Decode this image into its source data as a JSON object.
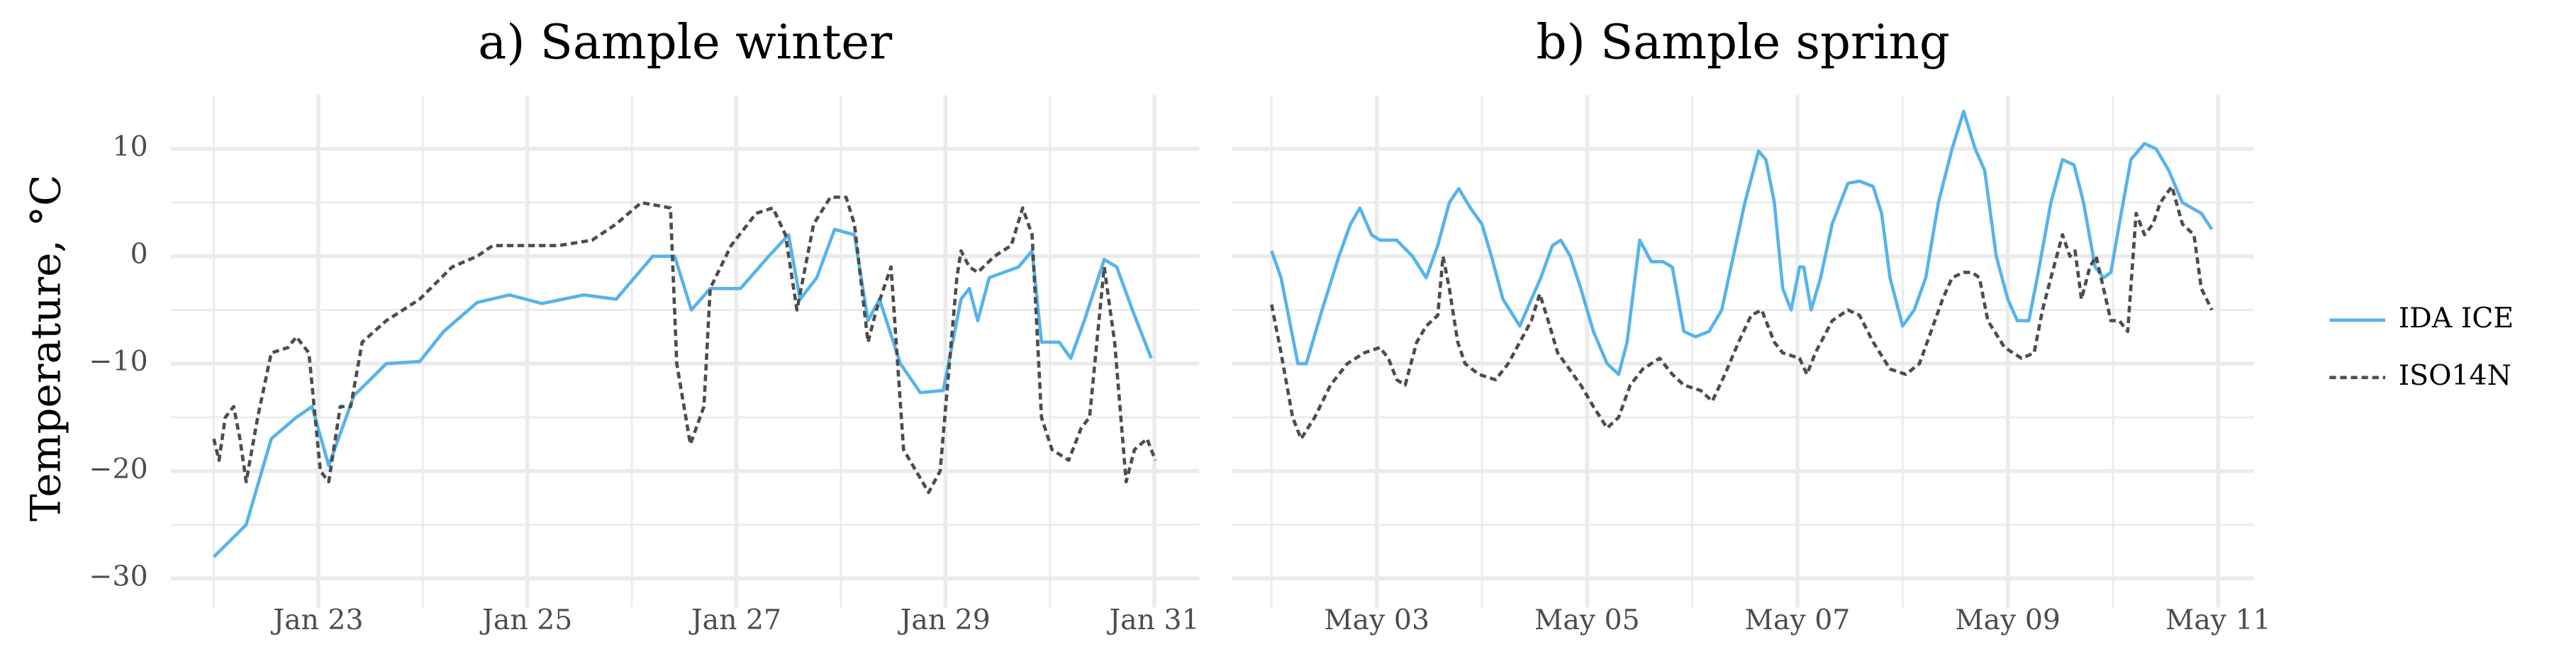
{
  "ylabel": "Temperature, °C",
  "legend": [
    {
      "name": "IDA ICE",
      "color": "#56b4e9",
      "dash": false
    },
    {
      "name": "ISO14N",
      "color": "#4d4d4d",
      "dash": true
    }
  ],
  "chart_data": [
    {
      "type": "line",
      "title": "a) Sample winter",
      "xlim": [
        21.59,
        31.43
      ],
      "xticks": [
        {
          "value": 23,
          "label": "Jan 23"
        },
        {
          "value": 25,
          "label": "Jan 25"
        },
        {
          "value": 27,
          "label": "Jan 27"
        },
        {
          "value": 29,
          "label": "Jan 29"
        },
        {
          "value": 31,
          "label": "Jan 31"
        }
      ],
      "xminor": [
        22,
        24,
        26,
        28,
        30
      ],
      "ylim": [
        -32.7,
        15
      ],
      "yticks": [
        {
          "value": -30,
          "label": "−30"
        },
        {
          "value": -20,
          "label": "−20"
        },
        {
          "value": -10,
          "label": "−10"
        },
        0,
        10
      ],
      "yminor": [
        -25,
        -15,
        -5,
        5
      ],
      "show_ytick_labels": true,
      "grid": true,
      "series": [
        {
          "color": "#56b4e9",
          "dash": false,
          "x": [
            22.0,
            22.31,
            22.55,
            22.79,
            22.94,
            23.1,
            23.34,
            23.65,
            23.97,
            24.2,
            24.52,
            24.83,
            25.14,
            25.54,
            25.85,
            26.2,
            26.41,
            26.57,
            26.75,
            27.04,
            27.31,
            27.5,
            27.61,
            27.77,
            27.94,
            28.13,
            28.26,
            28.37,
            28.57,
            28.76,
            28.98,
            29.15,
            29.23,
            29.31,
            29.42,
            29.7,
            29.83,
            29.92,
            30.09,
            30.2,
            30.33,
            30.52,
            30.64,
            30.79,
            30.97
          ],
          "values": [
            -28,
            -25,
            -17,
            -15,
            -14,
            -19.5,
            -13,
            -10,
            -9.8,
            -7,
            -4.3,
            -3.6,
            -4.4,
            -3.6,
            -4,
            0,
            0,
            -5,
            -3,
            -3,
            0,
            2,
            -4,
            -2,
            2.5,
            2,
            -6,
            -4,
            -10,
            -12.7,
            -12.5,
            -4,
            -3,
            -6,
            -2,
            -1,
            0.5,
            -8,
            -8,
            -9.5,
            -6,
            -0.3,
            -1,
            -5,
            -9.5
          ]
        },
        {
          "color": "#4d4d4d",
          "dash": true,
          "x": [
            22.0,
            22.05,
            22.11,
            22.19,
            22.25,
            22.31,
            22.42,
            22.55,
            22.71,
            22.79,
            22.91,
            23.02,
            23.1,
            23.21,
            23.31,
            23.42,
            23.65,
            23.97,
            24.28,
            24.52,
            24.67,
            24.99,
            25.3,
            25.62,
            25.85,
            26.09,
            26.37,
            26.43,
            26.56,
            26.69,
            26.75,
            26.95,
            27.19,
            27.35,
            27.47,
            27.58,
            27.74,
            27.9,
            28.05,
            28.13,
            28.26,
            28.34,
            28.48,
            28.6,
            28.84,
            28.95,
            29.11,
            29.15,
            29.23,
            29.31,
            29.47,
            29.63,
            29.74,
            29.83,
            29.92,
            30.02,
            30.18,
            30.3,
            30.38,
            30.52,
            30.62,
            30.73,
            30.81,
            30.93,
            31.01
          ],
          "values": [
            -17,
            -19,
            -15,
            -14,
            -17,
            -21,
            -15,
            -9,
            -8.5,
            -7.5,
            -9,
            -20,
            -21,
            -14,
            -14,
            -8,
            -6,
            -4,
            -1,
            0,
            1,
            1,
            1,
            1.5,
            3,
            5,
            4.5,
            -10,
            -17.5,
            -14,
            -3,
            1,
            4,
            4.5,
            2,
            -5,
            3,
            5.5,
            5.5,
            3,
            -8,
            -5,
            -1,
            -18,
            -22,
            -20,
            -2,
            0.5,
            -1,
            -1.5,
            0,
            1,
            4.5,
            2,
            -15,
            -18,
            -19,
            -16,
            -15,
            -1,
            -8,
            -21,
            -18,
            -17,
            -19
          ]
        }
      ]
    },
    {
      "type": "line",
      "title": "b) Sample spring",
      "xlim": [
        1.625,
        11.34
      ],
      "xticks": [
        {
          "value": 3,
          "label": "May 03"
        },
        {
          "value": 5,
          "label": "May 05"
        },
        {
          "value": 7,
          "label": "May 07"
        },
        {
          "value": 9,
          "label": "May 09"
        },
        {
          "value": 11,
          "label": "May 11"
        }
      ],
      "xminor": [
        2,
        4,
        6,
        8,
        10
      ],
      "ylim": [
        -32.7,
        15
      ],
      "yticks": [
        -30,
        -20,
        -10,
        0,
        10
      ],
      "yminor": [
        -25,
        -15,
        -5,
        5
      ],
      "show_ytick_labels": false,
      "grid": true,
      "series": [
        {
          "color": "#56b4e9",
          "dash": false,
          "x": [
            2.0,
            2.09,
            2.25,
            2.33,
            2.48,
            2.64,
            2.75,
            2.84,
            2.95,
            3.03,
            3.19,
            3.34,
            3.47,
            3.58,
            3.69,
            3.78,
            3.89,
            4.0,
            4.09,
            4.2,
            4.36,
            4.47,
            4.56,
            4.67,
            4.75,
            4.84,
            4.94,
            5.06,
            5.19,
            5.3,
            5.38,
            5.5,
            5.61,
            5.72,
            5.81,
            5.92,
            6.03,
            6.16,
            6.28,
            6.39,
            6.5,
            6.63,
            6.7,
            6.78,
            6.86,
            6.94,
            7.02,
            7.06,
            7.13,
            7.22,
            7.33,
            7.48,
            7.59,
            7.72,
            7.8,
            7.88,
            8.0,
            8.11,
            8.22,
            8.34,
            8.47,
            8.58,
            8.69,
            8.78,
            8.89,
            9.0,
            9.09,
            9.2,
            9.28,
            9.41,
            9.52,
            9.63,
            9.72,
            9.83,
            9.91,
            9.98,
            10.06,
            10.17,
            10.3,
            10.41,
            10.53,
            10.66,
            10.84,
            10.94
          ],
          "values": [
            0.5,
            -2,
            -10,
            -10,
            -5,
            0,
            3,
            4.5,
            2,
            1.5,
            1.5,
            0,
            -2,
            1,
            5,
            6.3,
            4.5,
            3,
            0,
            -4,
            -6.5,
            -4,
            -2,
            1,
            1.5,
            0,
            -3,
            -7,
            -10,
            -11,
            -8,
            1.5,
            -0.5,
            -0.5,
            -1,
            -7,
            -7.5,
            -7,
            -5,
            0,
            5,
            9.8,
            9,
            5,
            -3,
            -5,
            -1,
            -1,
            -5,
            -2,
            3,
            6.8,
            7,
            6.5,
            4,
            -2,
            -6.5,
            -5,
            -2,
            5,
            10,
            13.5,
            10,
            8,
            0,
            -4,
            -6,
            -6,
            -2,
            5,
            9,
            8.5,
            5,
            -1,
            -2,
            -1.5,
            3,
            9,
            10.5,
            10,
            8,
            5,
            4,
            2.5
          ]
        },
        {
          "color": "#4d4d4d",
          "dash": true,
          "x": [
            2.0,
            2.09,
            2.2,
            2.28,
            2.41,
            2.56,
            2.72,
            2.88,
            3.03,
            3.11,
            3.19,
            3.27,
            3.38,
            3.47,
            3.58,
            3.63,
            3.69,
            3.77,
            3.84,
            3.97,
            4.13,
            4.25,
            4.36,
            4.47,
            4.55,
            4.63,
            4.72,
            4.83,
            4.94,
            5.06,
            5.19,
            5.3,
            5.41,
            5.53,
            5.69,
            5.81,
            5.92,
            6.08,
            6.19,
            6.31,
            6.44,
            6.56,
            6.66,
            6.78,
            6.86,
            7.02,
            7.09,
            7.17,
            7.33,
            7.48,
            7.59,
            7.72,
            7.88,
            8.03,
            8.16,
            8.27,
            8.38,
            8.47,
            8.58,
            8.66,
            8.73,
            8.81,
            8.97,
            9.13,
            9.25,
            9.33,
            9.41,
            9.52,
            9.59,
            9.64,
            9.7,
            9.78,
            9.84,
            9.91,
            9.98,
            10.06,
            10.14,
            10.22,
            10.3,
            10.38,
            10.45,
            10.56,
            10.66,
            10.77,
            10.84,
            10.94
          ],
          "values": [
            -4.5,
            -9,
            -15,
            -17,
            -15,
            -12,
            -10,
            -9,
            -8.5,
            -9.5,
            -11.5,
            -12,
            -8,
            -6.5,
            -5.5,
            0,
            -3,
            -8,
            -10,
            -11,
            -11.5,
            -10,
            -8,
            -6,
            -3.5,
            -6,
            -9,
            -10.5,
            -12,
            -14,
            -16,
            -15,
            -12,
            -10.5,
            -9.5,
            -11,
            -12,
            -12.5,
            -13.5,
            -11,
            -8,
            -5.5,
            -5,
            -8,
            -9,
            -9.5,
            -11,
            -9,
            -6,
            -5,
            -5.5,
            -8,
            -10.5,
            -11,
            -10,
            -7,
            -4,
            -2,
            -1.5,
            -1.5,
            -2,
            -6,
            -8.5,
            -9.5,
            -9,
            -5,
            -2,
            2,
            0,
            0.5,
            -4,
            -1,
            0,
            -3,
            -6,
            -6,
            -7,
            4,
            2,
            3,
            5,
            6.5,
            3,
            2,
            -3,
            -5
          ]
        }
      ]
    }
  ]
}
